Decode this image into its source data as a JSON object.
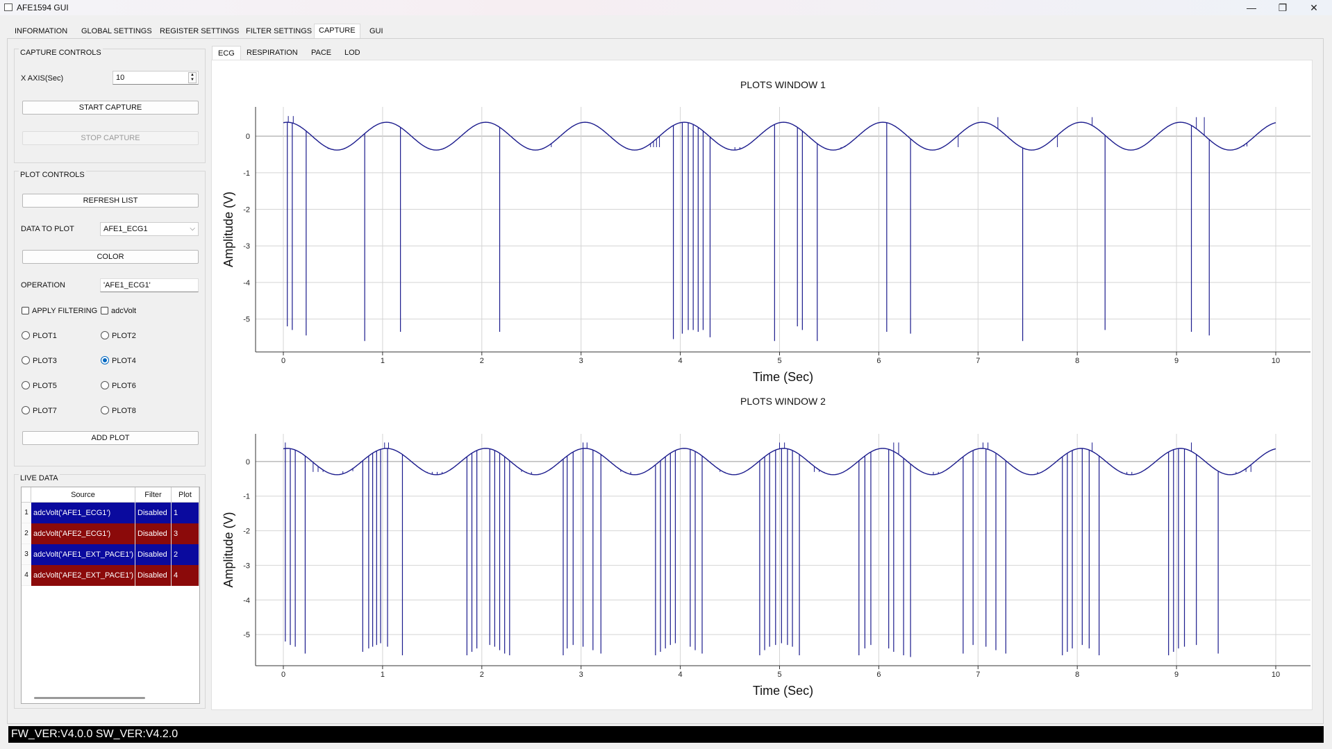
{
  "window": {
    "title": "AFE1594 GUI",
    "minimize": "—",
    "restore": "❐",
    "close": "✕"
  },
  "main_tabs": [
    "INFORMATION",
    "GLOBAL SETTINGS",
    "REGISTER SETTINGS",
    "FILTER SETTINGS",
    "CAPTURE",
    "GUI"
  ],
  "active_main_tab": "CAPTURE",
  "capture_controls": {
    "title": "CAPTURE CONTROLS",
    "xaxis_label": "X AXIS(Sec)",
    "xaxis_value": "10",
    "start_label": "START CAPTURE",
    "stop_label": "STOP CAPTURE"
  },
  "plot_controls": {
    "title": "PLOT CONTROLS",
    "refresh_label": "REFRESH LIST",
    "data_label": "DATA TO PLOT",
    "data_value": "AFE1_ECG1",
    "color_label": "COLOR",
    "operation_label": "OPERATION",
    "operation_value": "'AFE1_ECG1'",
    "apply_filtering": "APPLY FILTERING",
    "adcvolt": "adcVolt",
    "plots": [
      "PLOT1",
      "PLOT2",
      "PLOT3",
      "PLOT4",
      "PLOT5",
      "PLOT6",
      "PLOT7",
      "PLOT8"
    ],
    "selected_plot": "PLOT4",
    "add_plot_label": "ADD PLOT"
  },
  "live_data": {
    "title": "LIVE DATA",
    "headers": [
      "Source",
      "Filter",
      "Plot"
    ],
    "rows": [
      {
        "n": "1",
        "source": "adcVolt('AFE1_ECG1')",
        "filter": "Disabled",
        "plot": "1",
        "color": "#0a0a9e"
      },
      {
        "n": "2",
        "source": "adcVolt('AFE2_ECG1')",
        "filter": "Disabled",
        "plot": "3",
        "color": "#8b0a0a"
      },
      {
        "n": "3",
        "source": "adcVolt('AFE1_EXT_PACE1')",
        "filter": "Disabled",
        "plot": "2",
        "color": "#0a0a9e"
      },
      {
        "n": "4",
        "source": "adcVolt('AFE2_EXT_PACE1')",
        "filter": "Disabled",
        "plot": "4",
        "color": "#8b0a0a"
      }
    ]
  },
  "sub_tabs": [
    "ECG",
    "RESPIRATION",
    "PACE",
    "LOD"
  ],
  "active_sub_tab": "ECG",
  "status": "FW_VER:V4.0.0 SW_VER:V4.2.0",
  "chart_data": [
    {
      "type": "line",
      "title": "PLOTS WINDOW 1",
      "xlabel": "Time (Sec)",
      "ylabel": "Amplitude (V)",
      "xlim": [
        0,
        10
      ],
      "ylim": [
        -5.9,
        0.8
      ],
      "xticks": [
        0,
        1,
        2,
        3,
        4,
        5,
        6,
        7,
        8,
        9,
        10
      ],
      "yticks": [
        0,
        -1,
        -2,
        -3,
        -4,
        -5
      ],
      "grid": true,
      "line_color": "#1a1a8c",
      "baseline": {
        "amplitude": 0.38,
        "period": 1.0,
        "phase_offset": 0.0
      },
      "spikes": [
        {
          "x": 0.04,
          "y": -5.2
        },
        {
          "x": 0.09,
          "y": -5.3
        },
        {
          "x": 0.23,
          "y": -5.45
        },
        {
          "x": 0.82,
          "y": -5.6
        },
        {
          "x": 1.18,
          "y": -5.35
        },
        {
          "x": 2.18,
          "y": -5.35
        },
        {
          "x": 3.93,
          "y": -5.55
        },
        {
          "x": 4.02,
          "y": -5.4
        },
        {
          "x": 4.08,
          "y": -5.3
        },
        {
          "x": 4.13,
          "y": -5.3
        },
        {
          "x": 4.18,
          "y": -5.35
        },
        {
          "x": 4.23,
          "y": -5.3
        },
        {
          "x": 4.3,
          "y": -5.5
        },
        {
          "x": 4.95,
          "y": -5.6
        },
        {
          "x": 5.18,
          "y": -5.2
        },
        {
          "x": 5.23,
          "y": -5.3
        },
        {
          "x": 5.38,
          "y": -5.6
        },
        {
          "x": 6.08,
          "y": -5.35
        },
        {
          "x": 6.32,
          "y": -5.4
        },
        {
          "x": 7.45,
          "y": -5.6
        },
        {
          "x": 8.28,
          "y": -5.3
        },
        {
          "x": 9.15,
          "y": -5.35
        },
        {
          "x": 9.33,
          "y": -5.45
        }
      ],
      "small_spikes": [
        {
          "x": 0.05,
          "y": 0.55
        },
        {
          "x": 0.1,
          "y": 0.55
        },
        {
          "x": 0.45,
          "y": -0.35
        },
        {
          "x": 0.47,
          "y": -0.35
        },
        {
          "x": 0.5,
          "y": -0.35
        },
        {
          "x": 2.65,
          "y": -0.3
        },
        {
          "x": 2.7,
          "y": -0.3
        },
        {
          "x": 3.7,
          "y": -0.3
        },
        {
          "x": 3.73,
          "y": -0.3
        },
        {
          "x": 3.76,
          "y": -0.3
        },
        {
          "x": 3.79,
          "y": -0.3
        },
        {
          "x": 4.55,
          "y": -0.3
        },
        {
          "x": 4.6,
          "y": -0.3
        },
        {
          "x": 5.62,
          "y": -0.3
        },
        {
          "x": 5.66,
          "y": -0.3
        },
        {
          "x": 6.8,
          "y": -0.3
        },
        {
          "x": 7.2,
          "y": 0.52
        },
        {
          "x": 7.8,
          "y": -0.3
        },
        {
          "x": 8.15,
          "y": 0.52
        },
        {
          "x": 9.2,
          "y": 0.52
        },
        {
          "x": 9.28,
          "y": 0.52
        },
        {
          "x": 9.68,
          "y": -0.28
        },
        {
          "x": 9.71,
          "y": -0.28
        }
      ]
    },
    {
      "type": "line",
      "title": "PLOTS WINDOW 2",
      "xlabel": "Time (Sec)",
      "ylabel": "Amplitude (V)",
      "xlim": [
        0,
        10
      ],
      "ylim": [
        -5.9,
        0.8
      ],
      "xticks": [
        0,
        1,
        2,
        3,
        4,
        5,
        6,
        7,
        8,
        9,
        10
      ],
      "yticks": [
        0,
        -1,
        -2,
        -3,
        -4,
        -5
      ],
      "grid": true,
      "line_color": "#1a1a8c",
      "baseline": {
        "amplitude": 0.38,
        "period": 1.0,
        "phase_offset": 0.0
      },
      "spikes": [
        {
          "x": 0.02,
          "y": -5.2
        },
        {
          "x": 0.07,
          "y": -5.3
        },
        {
          "x": 0.12,
          "y": -5.35
        },
        {
          "x": 0.22,
          "y": -5.55
        },
        {
          "x": 0.8,
          "y": -5.5
        },
        {
          "x": 0.86,
          "y": -5.4
        },
        {
          "x": 0.9,
          "y": -5.35
        },
        {
          "x": 0.94,
          "y": -5.3
        },
        {
          "x": 0.98,
          "y": -5.25
        },
        {
          "x": 1.05,
          "y": -5.35
        },
        {
          "x": 1.2,
          "y": -5.6
        },
        {
          "x": 1.85,
          "y": -5.6
        },
        {
          "x": 1.9,
          "y": -5.5
        },
        {
          "x": 1.95,
          "y": -5.4
        },
        {
          "x": 2.08,
          "y": -5.3
        },
        {
          "x": 2.13,
          "y": -5.35
        },
        {
          "x": 2.18,
          "y": -5.45
        },
        {
          "x": 2.23,
          "y": -5.55
        },
        {
          "x": 2.28,
          "y": -5.6
        },
        {
          "x": 2.82,
          "y": -5.6
        },
        {
          "x": 2.86,
          "y": -5.4
        },
        {
          "x": 2.92,
          "y": -5.3
        },
        {
          "x": 3.02,
          "y": -5.35
        },
        {
          "x": 3.12,
          "y": -5.45
        },
        {
          "x": 3.2,
          "y": -5.55
        },
        {
          "x": 3.75,
          "y": -5.6
        },
        {
          "x": 3.8,
          "y": -5.5
        },
        {
          "x": 3.85,
          "y": -5.4
        },
        {
          "x": 3.9,
          "y": -5.3
        },
        {
          "x": 3.95,
          "y": -5.25
        },
        {
          "x": 4.1,
          "y": -5.35
        },
        {
          "x": 4.15,
          "y": -5.45
        },
        {
          "x": 4.22,
          "y": -5.55
        },
        {
          "x": 4.8,
          "y": -5.6
        },
        {
          "x": 4.85,
          "y": -5.45
        },
        {
          "x": 4.9,
          "y": -5.35
        },
        {
          "x": 4.96,
          "y": -5.3
        },
        {
          "x": 5.02,
          "y": -5.25
        },
        {
          "x": 5.08,
          "y": -5.3
        },
        {
          "x": 5.13,
          "y": -5.35
        },
        {
          "x": 5.2,
          "y": -5.6
        },
        {
          "x": 5.8,
          "y": -5.6
        },
        {
          "x": 5.86,
          "y": -5.4
        },
        {
          "x": 5.92,
          "y": -5.3
        },
        {
          "x": 6.1,
          "y": -5.4
        },
        {
          "x": 6.15,
          "y": -5.5
        },
        {
          "x": 6.25,
          "y": -5.6
        },
        {
          "x": 6.32,
          "y": -5.65
        },
        {
          "x": 6.85,
          "y": -5.55
        },
        {
          "x": 6.95,
          "y": -5.3
        },
        {
          "x": 7.08,
          "y": -5.35
        },
        {
          "x": 7.18,
          "y": -5.45
        },
        {
          "x": 7.28,
          "y": -5.55
        },
        {
          "x": 7.85,
          "y": -5.6
        },
        {
          "x": 7.9,
          "y": -5.5
        },
        {
          "x": 7.95,
          "y": -5.4
        },
        {
          "x": 8.05,
          "y": -5.3
        },
        {
          "x": 8.12,
          "y": -5.4
        },
        {
          "x": 8.22,
          "y": -5.6
        },
        {
          "x": 8.92,
          "y": -5.6
        },
        {
          "x": 8.97,
          "y": -5.5
        },
        {
          "x": 9.02,
          "y": -5.4
        },
        {
          "x": 9.08,
          "y": -5.35
        },
        {
          "x": 9.2,
          "y": -5.3
        },
        {
          "x": 9.42,
          "y": -5.55
        }
      ],
      "small_spikes": [
        {
          "x": 0.02,
          "y": 0.55
        },
        {
          "x": 0.3,
          "y": -0.3
        },
        {
          "x": 0.35,
          "y": -0.3
        },
        {
          "x": 0.4,
          "y": -0.3
        },
        {
          "x": 0.6,
          "y": -0.28
        },
        {
          "x": 0.65,
          "y": -0.28
        },
        {
          "x": 0.7,
          "y": -0.28
        },
        {
          "x": 1.02,
          "y": 0.55
        },
        {
          "x": 1.06,
          "y": 0.55
        },
        {
          "x": 1.45,
          "y": -0.3
        },
        {
          "x": 1.5,
          "y": -0.3
        },
        {
          "x": 1.55,
          "y": -0.3
        },
        {
          "x": 1.6,
          "y": -0.3
        },
        {
          "x": 2.4,
          "y": -0.3
        },
        {
          "x": 2.45,
          "y": -0.3
        },
        {
          "x": 2.5,
          "y": -0.3
        },
        {
          "x": 3.02,
          "y": 0.55
        },
        {
          "x": 3.06,
          "y": 0.55
        },
        {
          "x": 3.4,
          "y": -0.3
        },
        {
          "x": 3.45,
          "y": -0.3
        },
        {
          "x": 3.5,
          "y": -0.3
        },
        {
          "x": 4.4,
          "y": -0.3
        },
        {
          "x": 4.45,
          "y": -0.3
        },
        {
          "x": 5.0,
          "y": 0.55
        },
        {
          "x": 5.05,
          "y": 0.55
        },
        {
          "x": 5.35,
          "y": -0.3
        },
        {
          "x": 5.4,
          "y": -0.3
        },
        {
          "x": 5.45,
          "y": -0.3
        },
        {
          "x": 6.15,
          "y": 0.55
        },
        {
          "x": 6.2,
          "y": 0.55
        },
        {
          "x": 6.55,
          "y": -0.3
        },
        {
          "x": 6.6,
          "y": -0.3
        },
        {
          "x": 6.65,
          "y": -0.3
        },
        {
          "x": 7.05,
          "y": 0.55
        },
        {
          "x": 7.1,
          "y": 0.55
        },
        {
          "x": 7.6,
          "y": -0.3
        },
        {
          "x": 7.65,
          "y": -0.3
        },
        {
          "x": 8.15,
          "y": 0.55
        },
        {
          "x": 8.45,
          "y": -0.3
        },
        {
          "x": 8.5,
          "y": -0.3
        },
        {
          "x": 8.55,
          "y": -0.3
        },
        {
          "x": 9.15,
          "y": 0.55
        },
        {
          "x": 9.6,
          "y": -0.3
        },
        {
          "x": 9.65,
          "y": -0.3
        },
        {
          "x": 9.7,
          "y": -0.3
        },
        {
          "x": 9.75,
          "y": -0.3
        }
      ]
    }
  ]
}
